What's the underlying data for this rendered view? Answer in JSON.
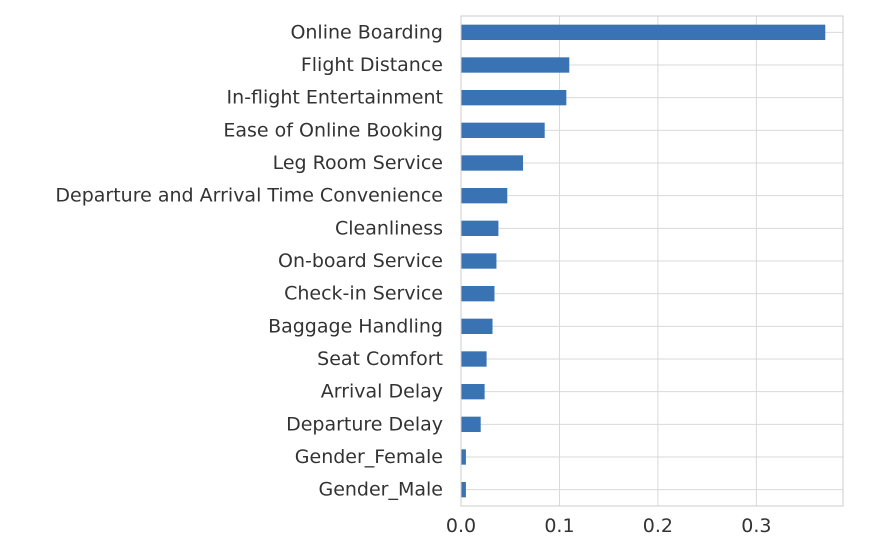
{
  "chart_data": {
    "type": "bar",
    "orientation": "horizontal",
    "title": "",
    "xlabel": "",
    "ylabel": "",
    "categories": [
      "Online Boarding",
      "Flight Distance",
      "In-flight Entertainment",
      "Ease of Online Booking",
      "Leg Room Service",
      "Departure and Arrival Time Convenience",
      "Cleanliness",
      "On-board Service",
      "Check-in Service",
      "Baggage Handling",
      "Seat Comfort",
      "Arrival Delay",
      "Departure Delay",
      "Gender_Female",
      "Gender_Male"
    ],
    "values": [
      0.37,
      0.11,
      0.107,
      0.085,
      0.063,
      0.047,
      0.038,
      0.036,
      0.034,
      0.032,
      0.026,
      0.024,
      0.02,
      0.005,
      0.005
    ],
    "xlim": [
      0.0,
      0.388
    ],
    "xticks": [
      0.0,
      0.1,
      0.2,
      0.3
    ],
    "xtick_labels": [
      "0.0",
      "0.1",
      "0.2",
      "0.3"
    ],
    "grid": true,
    "legend": "none",
    "bar_color": "#3a73b3",
    "grid_color": "#d9d9d9",
    "frame_color": "#cccccc"
  }
}
